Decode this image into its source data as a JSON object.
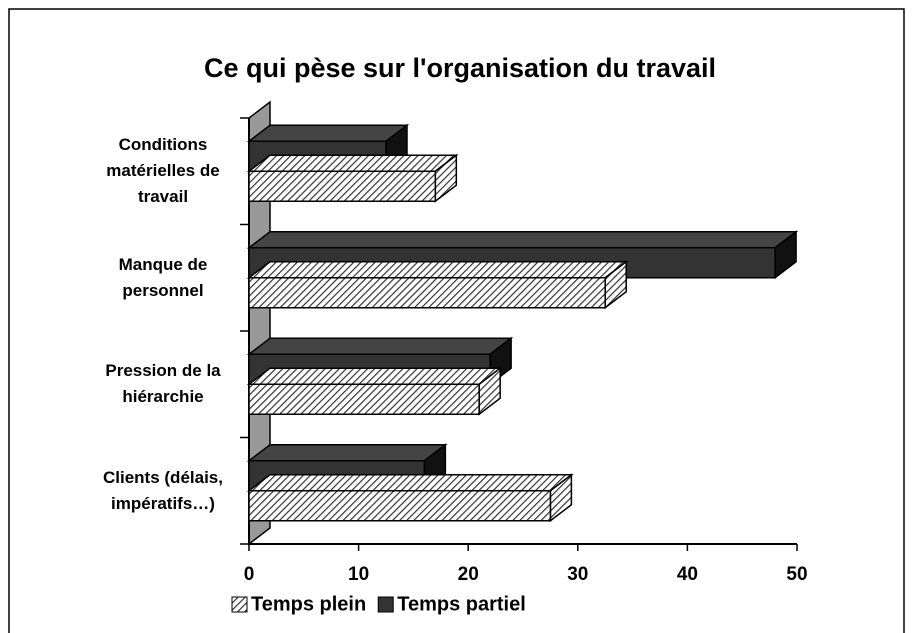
{
  "chart_data": {
    "type": "bar3d_horizontal",
    "title": "Ce qui pèse sur l'organisation du travail",
    "categories": [
      "Conditions matérielles de travail",
      "Manque de personnel",
      "Pression de la hiérarchie",
      "Clients (délais, impératifs…)"
    ],
    "series": [
      {
        "name": "Temps plein",
        "color": "#333333",
        "hatch": true,
        "values": [
          17,
          32.5,
          21,
          27.5
        ]
      },
      {
        "name": "Temps partiel",
        "color": "#333333",
        "hatch": false,
        "values": [
          12.5,
          48,
          22,
          16
        ]
      }
    ],
    "xlim": [
      0,
      50
    ],
    "xticks": [
      0,
      10,
      20,
      30,
      40,
      50
    ],
    "legend": "bottom"
  }
}
